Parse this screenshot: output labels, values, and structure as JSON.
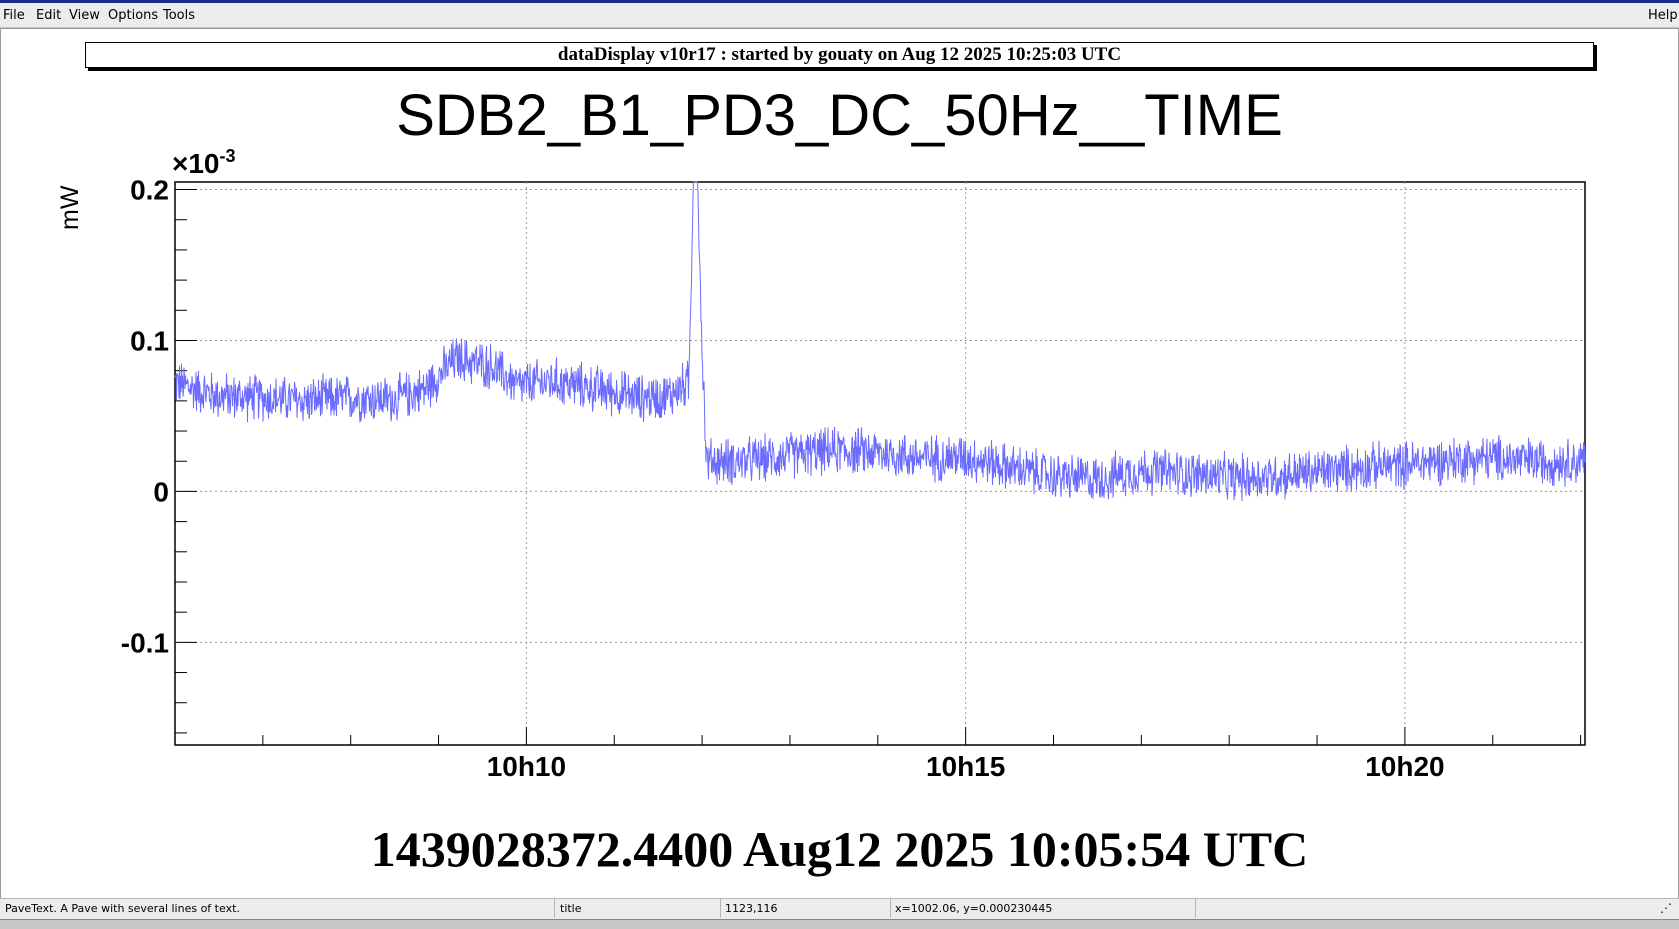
{
  "window": {
    "menu": [
      "File",
      "Edit",
      "View",
      "Options",
      "Tools"
    ],
    "help": "Help"
  },
  "pave_text": "dataDisplay v10r17 : started by gouaty on Aug 12 2025 10:25:03 UTC",
  "timestamp_text": "1439028372.4400 Aug12 2025 10:05:54 UTC",
  "statusbar": {
    "object": "PaveText. A Pave with several lines of text.",
    "name": "title",
    "pixel": "1123,116",
    "coords": "x=1002.06, y=0.000230445"
  },
  "colors": {
    "series": "#6b6bff",
    "grid": "#9a9a9a",
    "pave_border": "#000000"
  },
  "chart_data": {
    "type": "line",
    "title": "SDB2_B1_PD3_DC_50Hz__TIME",
    "xlabel": "",
    "ylabel": "mW",
    "y_exponent_label": "×10",
    "y_exponent": "-3",
    "xlim_minutes": [
      6.0,
      22.05
    ],
    "ylim": [
      -0.168,
      0.205
    ],
    "x_ticks": [
      {
        "minute": 10,
        "label": "10h10"
      },
      {
        "minute": 15,
        "label": "10h15"
      },
      {
        "minute": 20,
        "label": "10h20"
      }
    ],
    "y_ticks": [
      {
        "value": 0.2,
        "label": "0.2"
      },
      {
        "value": 0.1,
        "label": "0.1"
      },
      {
        "value": 0,
        "label": "0"
      },
      {
        "value": -0.1,
        "label": "-0.1"
      }
    ],
    "grid": true,
    "series": [
      {
        "x_minutes": [
          6.0,
          6.5,
          7.0,
          7.5,
          8.0,
          8.5,
          8.85,
          9.2,
          9.6,
          9.9,
          10.3,
          10.8,
          11.3,
          11.6,
          11.85,
          11.9,
          11.95,
          12.0,
          12.05,
          12.5,
          13.0,
          13.5,
          14.0,
          14.5,
          15.0,
          15.5,
          16.0,
          16.5,
          17.0,
          17.5,
          18.0,
          18.5,
          19.0,
          19.5,
          20.0,
          20.5,
          21.0,
          21.5,
          22.05
        ],
        "y": [
          0.072,
          0.063,
          0.062,
          0.06,
          0.062,
          0.061,
          0.068,
          0.088,
          0.083,
          0.07,
          0.073,
          0.068,
          0.062,
          0.063,
          0.072,
          0.205,
          0.205,
          0.095,
          0.02,
          0.02,
          0.024,
          0.027,
          0.026,
          0.022,
          0.023,
          0.016,
          0.01,
          0.008,
          0.014,
          0.012,
          0.009,
          0.01,
          0.013,
          0.016,
          0.018,
          0.021,
          0.022,
          0.02,
          0.02
        ],
        "noise_amplitude": 0.013
      }
    ]
  }
}
